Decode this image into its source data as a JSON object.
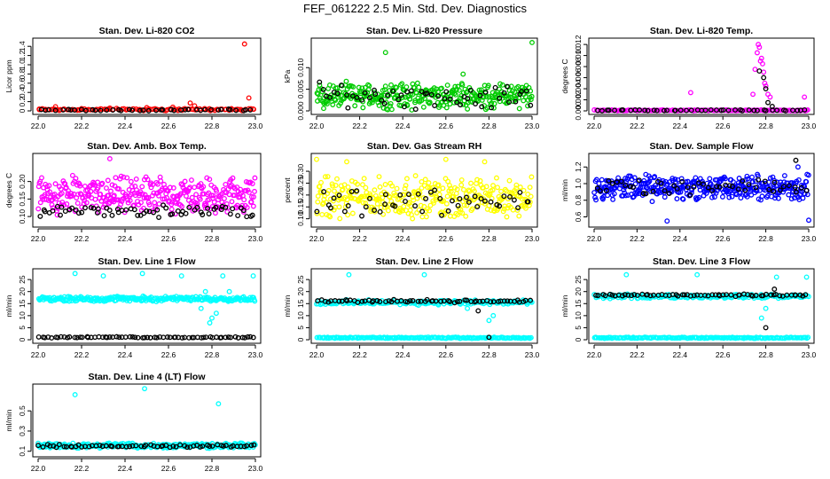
{
  "figure": {
    "title": "FEF_061222  2.5 Min. Std. Dev. Diagnostics"
  },
  "chart_data": [
    {
      "type": "scatter",
      "title": "Stan. Dev. Li-820 CO2",
      "ylabel": "Licor ppm",
      "xlim": [
        22.0,
        23.0
      ],
      "ylim": [
        0,
        1.5
      ],
      "xticks": [
        "22.0",
        "22.2",
        "22.4",
        "22.6",
        "22.8",
        "23.0"
      ],
      "yticks": [
        {
          "v": 0,
          "label": "0"
        },
        {
          "v": 0.2,
          "label": "0.2"
        },
        {
          "v": 0.4,
          "label": "0.4"
        },
        {
          "v": 0.6,
          "label": "0.6"
        },
        {
          "v": 0.8,
          "label": "0.8"
        },
        {
          "v": 1.0,
          "label": "1.0"
        },
        {
          "v": 1.2,
          "label": "1.2"
        },
        {
          "v": 1.4,
          "label": "1.4"
        }
      ],
      "colors": [
        "#ff0000",
        "#000000"
      ],
      "series": [
        {
          "color": "#ff0000",
          "x": [
            22.005,
            22.08,
            22.2,
            22.33,
            22.5,
            22.62,
            22.7,
            22.72,
            22.95,
            22.97
          ],
          "y": [
            0.04,
            0.09,
            0.05,
            0.06,
            0.07,
            0.08,
            0.17,
            0.11,
            1.45,
            0.28
          ],
          "base": {
            "n": 110,
            "xmin": 22.0,
            "xmax": 23.0,
            "mean": 0.03,
            "spread": 0.03
          }
        },
        {
          "color": "#000000",
          "x": [],
          "y": [],
          "base": {
            "n": 42,
            "xmin": 22.0,
            "xmax": 23.0,
            "mean": 0.02,
            "spread": 0.02
          }
        }
      ]
    },
    {
      "type": "scatter",
      "title": "Stan. Dev. Li-820 Pressure",
      "ylabel": "kPa",
      "xlim": [
        22.0,
        23.0
      ],
      "ylim": [
        0,
        0.016
      ],
      "xticks": [
        "22.0",
        "22.2",
        "22.4",
        "22.6",
        "22.8",
        "23.0"
      ],
      "yticks": [
        {
          "v": 0,
          "label": "0.000"
        },
        {
          "v": 0.005,
          "label": "0.005"
        },
        {
          "v": 0.01,
          "label": "0.010"
        }
      ],
      "colors": [
        "#00cc00",
        "#000000"
      ],
      "series": [
        {
          "color": "#00cc00",
          "x": [
            22.32,
            22.68,
            23.0
          ],
          "y": [
            0.0135,
            0.0085,
            0.0158
          ],
          "base": {
            "n": 330,
            "xmin": 22.0,
            "xmax": 23.0,
            "mean": 0.0035,
            "spread": 0.0035
          }
        },
        {
          "color": "#000000",
          "x": [],
          "y": [],
          "base": {
            "n": 55,
            "xmin": 22.0,
            "xmax": 23.0,
            "mean": 0.0035,
            "spread": 0.0035
          }
        }
      ]
    },
    {
      "type": "scatter",
      "title": "Stan. Dev. Li-820 Temp.",
      "ylabel": "degrees C",
      "xlim": [
        22.0,
        23.0
      ],
      "ylim": [
        0,
        0.0125
      ],
      "xticks": [
        "22.0",
        "22.2",
        "22.4",
        "22.6",
        "22.8",
        "23.0"
      ],
      "yticks": [
        {
          "v": 0,
          "label": "0.000"
        },
        {
          "v": 0.002,
          "label": "0.002"
        },
        {
          "v": 0.004,
          "label": "0.004"
        },
        {
          "v": 0.006,
          "label": "0.006"
        },
        {
          "v": 0.008,
          "label": "0.008"
        },
        {
          "v": 0.01,
          "label": "0.010"
        },
        {
          "v": 0.012,
          "label": "0.012"
        }
      ],
      "colors": [
        "#ff00ff",
        "#000000"
      ],
      "series": [
        {
          "color": "#ff00ff",
          "x": [
            22.45,
            22.74,
            22.75,
            22.76,
            22.765,
            22.77,
            22.775,
            22.78,
            22.785,
            22.79,
            22.795,
            22.8,
            22.81,
            22.82,
            22.98
          ],
          "y": [
            0.0033,
            0.003,
            0.0075,
            0.0105,
            0.012,
            0.0115,
            0.009,
            0.0095,
            0.0085,
            0.007,
            0.005,
            0.0045,
            0.003,
            0.0025,
            0.0025
          ],
          "base": {
            "n": 140,
            "xmin": 22.0,
            "xmax": 23.0,
            "mean": 0.0001,
            "spread": 0.0001
          }
        },
        {
          "color": "#000000",
          "x": [
            22.77,
            22.79,
            22.8,
            22.81,
            22.83
          ],
          "y": [
            0.0072,
            0.006,
            0.004,
            0.0015,
            0.0008
          ],
          "base": {
            "n": 45,
            "xmin": 22.0,
            "xmax": 23.0,
            "mean": 0.0001,
            "spread": 0.0001
          }
        }
      ]
    },
    {
      "type": "scatter",
      "title": "Stan. Dev. Amb. Box Temp.",
      "ylabel": "degrees C",
      "xlim": [
        22.0,
        23.0
      ],
      "ylim": [
        0.08,
        0.27
      ],
      "xticks": [
        "22.0",
        "22.2",
        "22.4",
        "22.6",
        "22.8",
        "23.0"
      ],
      "yticks": [
        {
          "v": 0.1,
          "label": "0.10"
        },
        {
          "v": 0.15,
          "label": "0.15"
        },
        {
          "v": 0.2,
          "label": "0.20"
        }
      ],
      "colors": [
        "#ff00ff",
        "#000000"
      ],
      "series": [
        {
          "color": "#ff00ff",
          "x": [
            22.33
          ],
          "y": [
            0.265
          ],
          "base": {
            "n": 360,
            "xmin": 22.0,
            "xmax": 23.0,
            "mean": 0.16,
            "spread": 0.06
          }
        },
        {
          "color": "#000000",
          "x": [],
          "y": [],
          "base": {
            "n": 65,
            "xmin": 22.0,
            "xmax": 23.0,
            "mean": 0.115,
            "spread": 0.02
          }
        }
      ]
    },
    {
      "type": "scatter",
      "title": "Stan. Dev. Gas Stream RH",
      "ylabel": "percent",
      "xlim": [
        22.0,
        23.0
      ],
      "ylim": [
        0.08,
        0.36
      ],
      "xticks": [
        "22.0",
        "22.2",
        "22.4",
        "22.6",
        "22.8",
        "23.0"
      ],
      "yticks": [
        {
          "v": 0.1,
          "label": "0.10"
        },
        {
          "v": 0.15,
          "label": "0.15"
        },
        {
          "v": 0.2,
          "label": "0.20"
        },
        {
          "v": 0.25,
          "label": "0.25"
        },
        {
          "v": 0.3,
          "label": "0.30"
        }
      ],
      "colors": [
        "#ffff00",
        "#000000"
      ],
      "series": [
        {
          "color": "#ffff00",
          "x": [
            22.0,
            22.14,
            22.6,
            22.78
          ],
          "y": [
            0.35,
            0.34,
            0.35,
            0.34
          ],
          "base": {
            "n": 330,
            "xmin": 22.0,
            "xmax": 23.0,
            "mean": 0.19,
            "spread": 0.1
          }
        },
        {
          "color": "#000000",
          "x": [],
          "y": [],
          "base": {
            "n": 50,
            "xmin": 22.0,
            "xmax": 23.0,
            "mean": 0.17,
            "spread": 0.07
          }
        }
      ]
    },
    {
      "type": "scatter",
      "title": "Stan. Dev. Sample Flow",
      "ylabel": "ml/min",
      "xlim": [
        22.0,
        23.0
      ],
      "ylim": [
        0.52,
        1.32
      ],
      "xticks": [
        "22.0",
        "22.2",
        "22.4",
        "22.6",
        "22.8",
        "23.0"
      ],
      "yticks": [
        {
          "v": 0.6,
          "label": "0.6"
        },
        {
          "v": 0.8,
          "label": "0.8"
        },
        {
          "v": 1.0,
          "label": "1.0"
        },
        {
          "v": 1.2,
          "label": "1.2"
        }
      ],
      "colors": [
        "#0000ff",
        "#000000"
      ],
      "series": [
        {
          "color": "#0000ff",
          "x": [
            22.34,
            23.0,
            22.95
          ],
          "y": [
            0.55,
            0.56,
            1.2
          ],
          "base": {
            "n": 380,
            "xmin": 22.0,
            "xmax": 23.0,
            "mean": 0.95,
            "spread": 0.18
          }
        },
        {
          "color": "#000000",
          "x": [
            22.94
          ],
          "y": [
            1.28
          ],
          "base": {
            "n": 50,
            "xmin": 22.0,
            "xmax": 23.0,
            "mean": 0.95,
            "spread": 0.1
          }
        }
      ]
    },
    {
      "type": "scatter",
      "title": "Stan. Dev. Line 1 Flow",
      "ylabel": "ml/min",
      "xlim": [
        22.0,
        23.0
      ],
      "ylim": [
        0,
        28
      ],
      "xticks": [
        "22.0",
        "22.2",
        "22.4",
        "22.6",
        "22.8",
        "23.0"
      ],
      "yticks": [
        {
          "v": 0,
          "label": "0"
        },
        {
          "v": 5,
          "label": "5"
        },
        {
          "v": 10,
          "label": "10"
        },
        {
          "v": 15,
          "label": "15"
        },
        {
          "v": 20,
          "label": "20"
        },
        {
          "v": 25,
          "label": "25"
        }
      ],
      "colors": [
        "#00ffff",
        "#000000"
      ],
      "series": [
        {
          "color": "#00ffff",
          "x": [
            22.17,
            22.3,
            22.48,
            22.66,
            22.85,
            22.99,
            22.79,
            22.8,
            22.82,
            22.75,
            22.77,
            22.88
          ],
          "y": [
            27.5,
            26.5,
            27.5,
            26.5,
            26.5,
            26.5,
            7,
            9,
            11,
            13,
            20,
            20
          ],
          "base": {
            "n": 260,
            "xmin": 22.0,
            "xmax": 23.0,
            "mean": 17,
            "spread": 1.2
          }
        },
        {
          "color": "#000000",
          "x": [],
          "y": [],
          "base": {
            "n": 70,
            "xmin": 22.0,
            "xmax": 23.0,
            "mean": 1,
            "spread": 0.3
          }
        }
      ]
    },
    {
      "type": "scatter",
      "title": "Stan. Dev. Line 2 Flow",
      "ylabel": "ml/min",
      "xlim": [
        22.0,
        23.0
      ],
      "ylim": [
        0,
        28
      ],
      "xticks": [
        "22.0",
        "22.2",
        "22.4",
        "22.6",
        "22.8",
        "23.0"
      ],
      "yticks": [
        {
          "v": 0,
          "label": "0"
        },
        {
          "v": 5,
          "label": "5"
        },
        {
          "v": 10,
          "label": "10"
        },
        {
          "v": 15,
          "label": "15"
        },
        {
          "v": 20,
          "label": "20"
        },
        {
          "v": 25,
          "label": "25"
        }
      ],
      "colors": [
        "#00ffff",
        "#000000"
      ],
      "series": [
        {
          "color": "#00ffff",
          "x": [
            22.15,
            22.5,
            22.8,
            22.82,
            22.7
          ],
          "y": [
            27,
            27,
            8,
            10,
            13
          ],
          "base": {
            "n": 200,
            "xmin": 22.0,
            "xmax": 23.0,
            "mean": 15.5,
            "spread": 1.2
          },
          "floor": {
            "n": 170,
            "xmin": 22.0,
            "xmax": 23.0,
            "mean": 0.8,
            "spread": 0.3
          }
        },
        {
          "color": "#000000",
          "x": [
            22.8,
            22.75
          ],
          "y": [
            1,
            12
          ],
          "base": {
            "n": 65,
            "xmin": 22.0,
            "xmax": 23.0,
            "mean": 16,
            "spread": 0.8
          }
        }
      ]
    },
    {
      "type": "scatter",
      "title": "Stan. Dev. Line 3 Flow",
      "ylabel": "ml/min",
      "xlim": [
        22.0,
        23.0
      ],
      "ylim": [
        0,
        28
      ],
      "xticks": [
        "22.0",
        "22.2",
        "22.4",
        "22.6",
        "22.8",
        "23.0"
      ],
      "yticks": [
        {
          "v": 0,
          "label": "0"
        },
        {
          "v": 5,
          "label": "5"
        },
        {
          "v": 10,
          "label": "10"
        },
        {
          "v": 15,
          "label": "15"
        },
        {
          "v": 20,
          "label": "20"
        },
        {
          "v": 25,
          "label": "25"
        }
      ],
      "colors": [
        "#00ffff",
        "#000000"
      ],
      "series": [
        {
          "color": "#00ffff",
          "x": [
            22.15,
            22.48,
            22.85,
            22.99,
            22.78,
            22.8
          ],
          "y": [
            27,
            27,
            26,
            26,
            9,
            13
          ],
          "base": {
            "n": 200,
            "xmin": 22.0,
            "xmax": 23.0,
            "mean": 18,
            "spread": 1.0
          },
          "floor": {
            "n": 170,
            "xmin": 22.0,
            "xmax": 23.0,
            "mean": 0.8,
            "spread": 0.3
          }
        },
        {
          "color": "#000000",
          "x": [
            22.8,
            22.84
          ],
          "y": [
            5,
            21
          ],
          "base": {
            "n": 65,
            "xmin": 22.0,
            "xmax": 23.0,
            "mean": 18.5,
            "spread": 0.6
          }
        }
      ]
    },
    {
      "type": "scatter",
      "title": "Stan. Dev. Line 4 (LT) Flow",
      "ylabel": "ml/min",
      "xlim": [
        22.0,
        23.0
      ],
      "ylim": [
        0.08,
        0.73
      ],
      "xticks": [
        "22.0",
        "22.2",
        "22.4",
        "22.6",
        "22.8",
        "23.0"
      ],
      "yticks": [
        {
          "v": 0.1,
          "label": "0.1"
        },
        {
          "v": 0.3,
          "label": "0.3"
        },
        {
          "v": 0.5,
          "label": "0.5"
        }
      ],
      "colors": [
        "#00ffff",
        "#000000"
      ],
      "series": [
        {
          "color": "#00ffff",
          "x": [
            22.17,
            22.49,
            22.83
          ],
          "y": [
            0.66,
            0.72,
            0.57
          ],
          "base": {
            "n": 300,
            "xmin": 22.0,
            "xmax": 23.0,
            "mean": 0.155,
            "spread": 0.03
          }
        },
        {
          "color": "#000000",
          "x": [],
          "y": [],
          "base": {
            "n": 65,
            "xmin": 22.0,
            "xmax": 23.0,
            "mean": 0.15,
            "spread": 0.02
          }
        }
      ]
    }
  ]
}
